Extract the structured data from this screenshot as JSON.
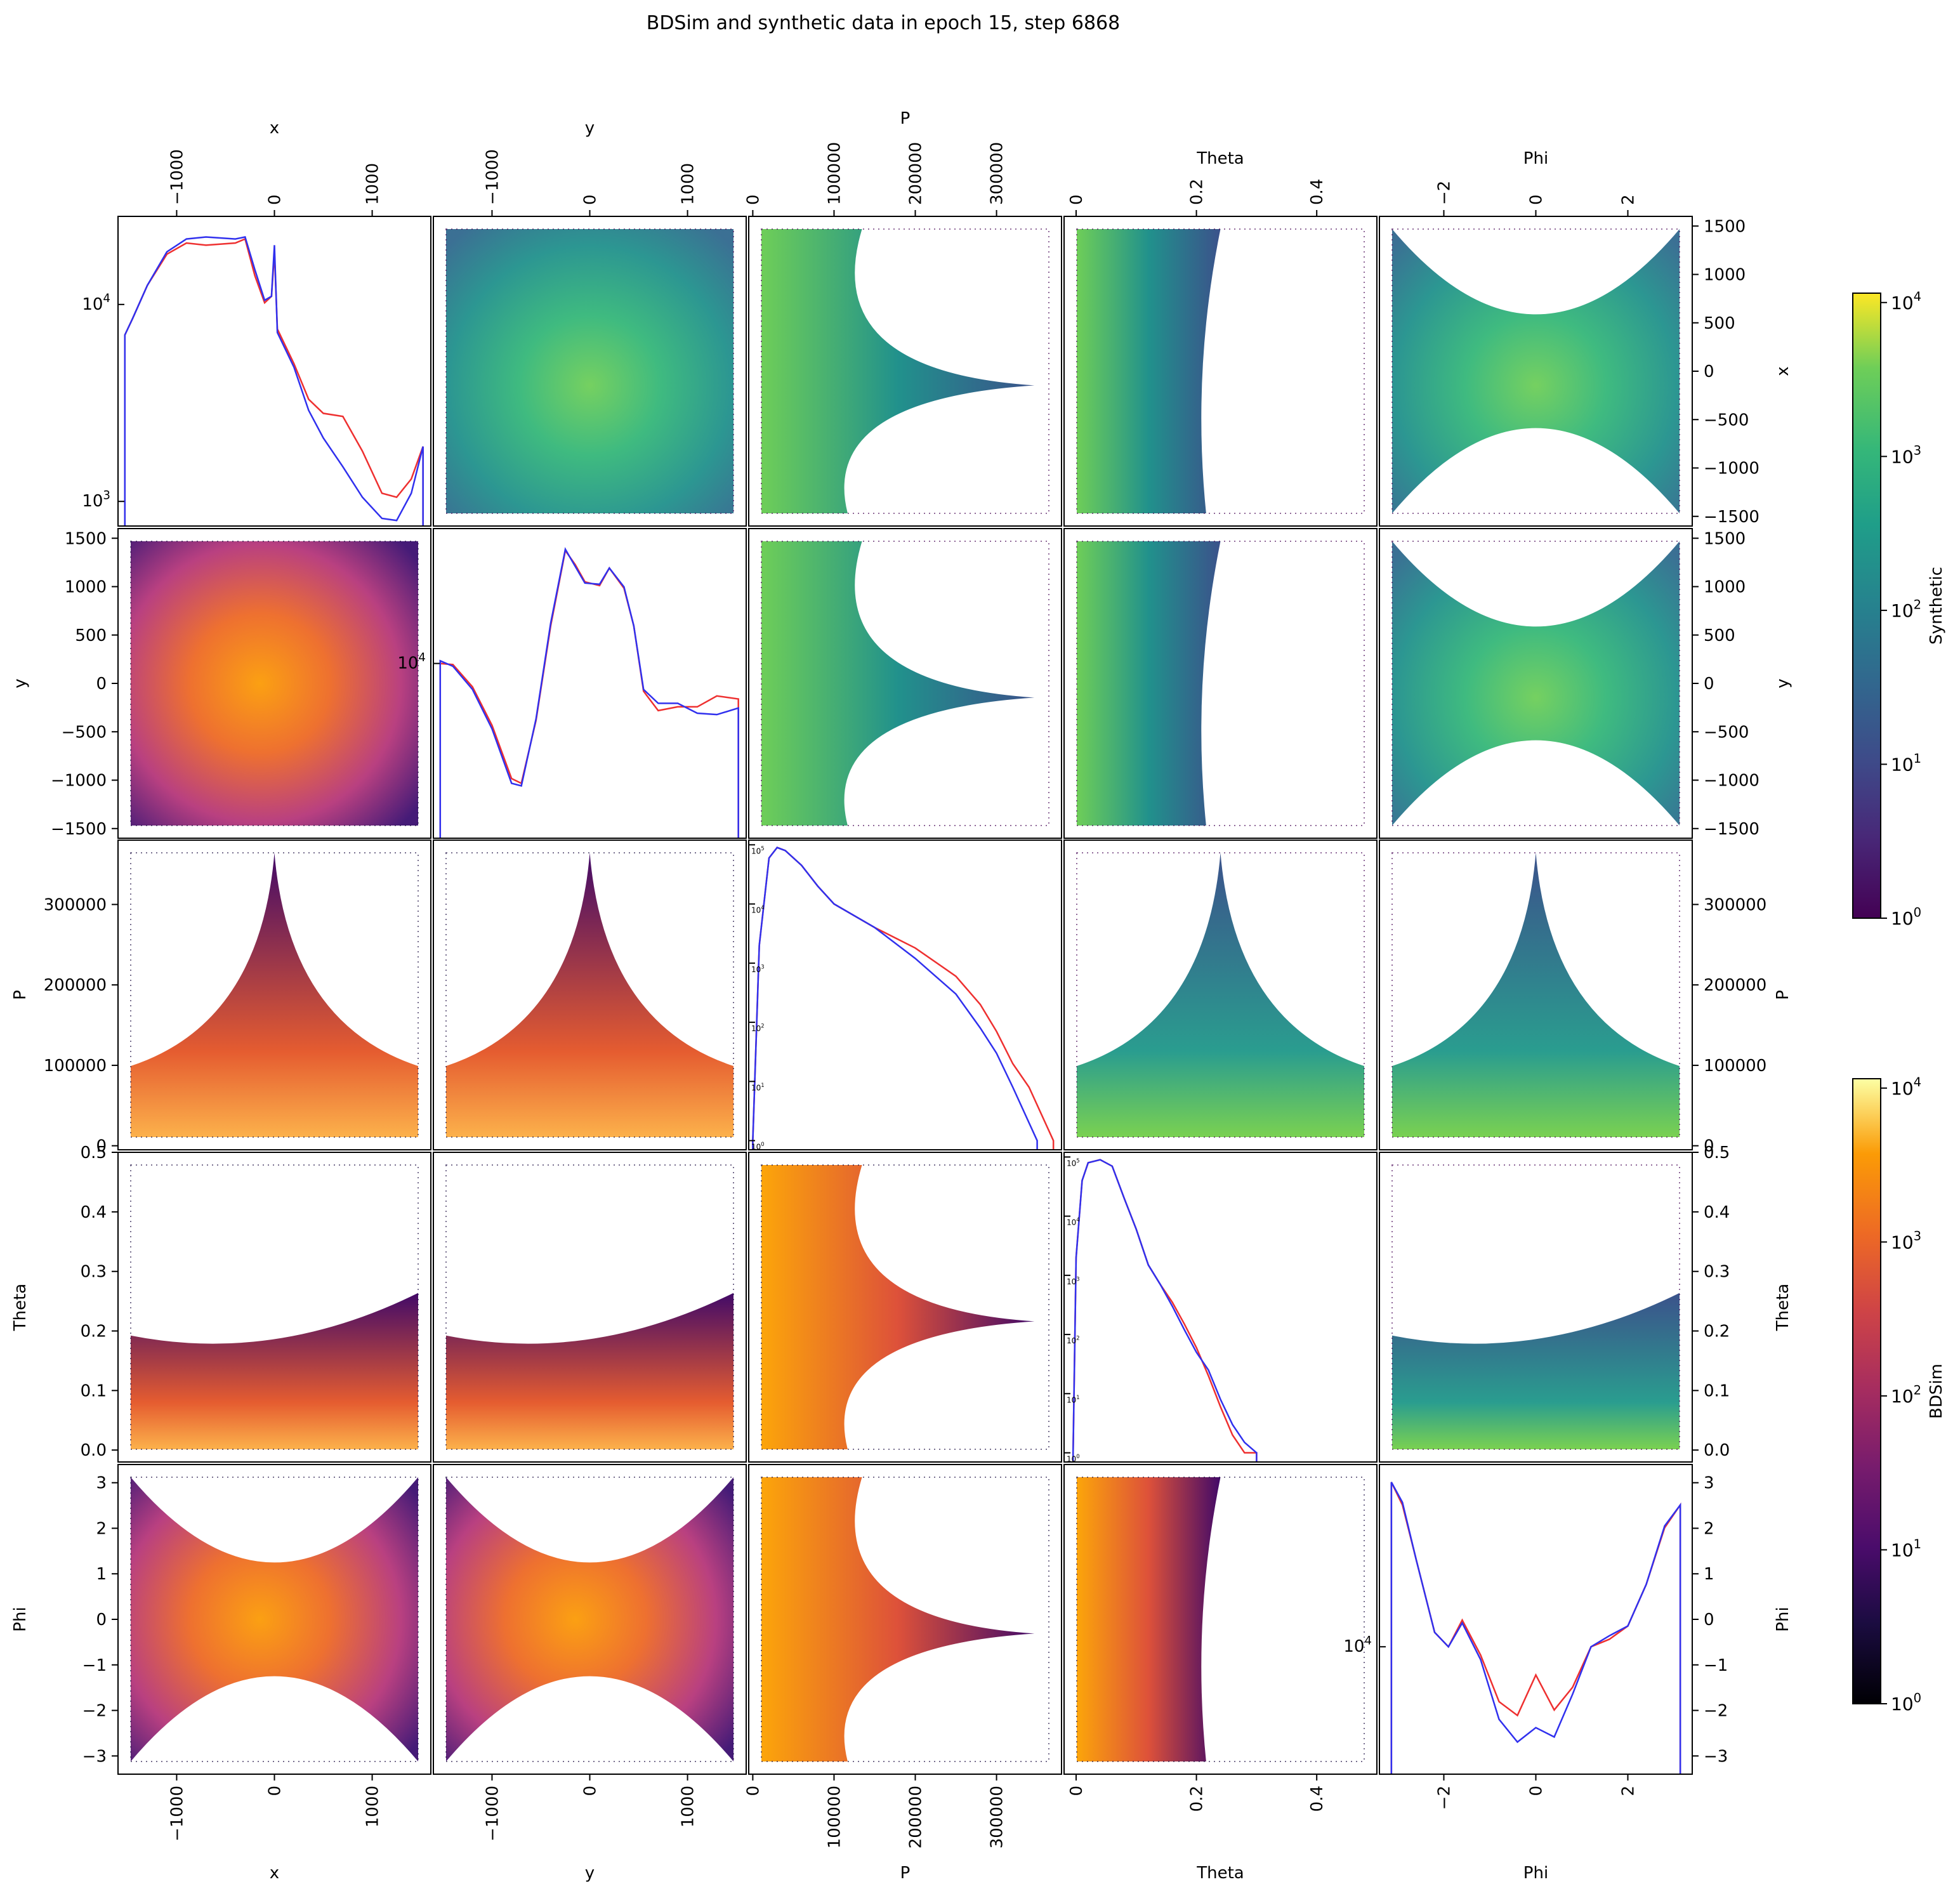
{
  "title": "BDSim and synthetic data in epoch 15, step 6868",
  "colors": {
    "bdsim_line": "#ee3030",
    "synthetic_line": "#3030ee",
    "frame": "#000000"
  },
  "colorbars": [
    {
      "label": "Synthetic",
      "colormap": "viridis",
      "scale": "log",
      "range": [
        1,
        10000
      ],
      "ticks": [
        "10^0",
        "10^1",
        "10^2",
        "10^3",
        "10^4"
      ]
    },
    {
      "label": "BDSim",
      "colormap": "inferno",
      "scale": "log",
      "range": [
        1,
        10000
      ],
      "ticks": [
        "10^0",
        "10^1",
        "10^2",
        "10^3",
        "10^4"
      ]
    }
  ],
  "chart_data": {
    "type": "pairplot",
    "layout": "upper triangle = Synthetic 2D histograms (viridis, log); lower triangle = BDSim 2D histograms (inferno, log); diagonal = 1D histograms, BDSim (red) vs Synthetic (blue), log y",
    "variables": [
      "x",
      "y",
      "P",
      "Theta",
      "Phi"
    ],
    "axes": {
      "x": {
        "label": "x",
        "range": [
          -1600,
          1600
        ],
        "ticks": [
          -1000,
          0,
          1000
        ]
      },
      "y": {
        "label": "y",
        "range": [
          -1600,
          1600
        ],
        "ticks": [
          -1000,
          0,
          1000
        ]
      },
      "P": {
        "label": "P",
        "range": [
          -5000,
          380000
        ],
        "ticks": [
          0,
          100000,
          200000,
          300000
        ]
      },
      "Theta": {
        "label": "Theta",
        "range": [
          -0.02,
          0.5
        ],
        "ticks": [
          0.0,
          0.2,
          0.4
        ]
      },
      "Phi": {
        "label": "Phi",
        "range": [
          -3.4,
          3.4
        ],
        "ticks": [
          -2,
          0,
          2
        ]
      }
    },
    "row_ticks": {
      "x": [
        -1500,
        -1000,
        -500,
        0,
        500,
        1000,
        1500
      ],
      "y": [
        -1500,
        -1000,
        -500,
        0,
        500,
        1000,
        1500
      ],
      "P": [
        0,
        100000,
        200000,
        300000
      ],
      "Theta": [
        0.0,
        0.1,
        0.2,
        0.3,
        0.4,
        0.5
      ],
      "Phi": [
        -3,
        -2,
        -1,
        0,
        1,
        2,
        3
      ]
    },
    "diagonal_hist": {
      "x": {
        "ylim_log": [
          750,
          28000
        ],
        "tick_labels": [
          "10^3",
          "10^4"
        ],
        "bdsim": [
          [
            -1530,
            7000
          ],
          [
            -1450,
            8500
          ],
          [
            -1300,
            12500
          ],
          [
            -1100,
            18000
          ],
          [
            -900,
            20500
          ],
          [
            -700,
            20000
          ],
          [
            -400,
            20500
          ],
          [
            -300,
            21500
          ],
          [
            -200,
            14000
          ],
          [
            -100,
            10200
          ],
          [
            -30,
            11000
          ],
          [
            0,
            18500
          ],
          [
            30,
            7500
          ],
          [
            200,
            5000
          ],
          [
            350,
            3300
          ],
          [
            500,
            2800
          ],
          [
            700,
            2700
          ],
          [
            900,
            1800
          ],
          [
            1100,
            1100
          ],
          [
            1250,
            1050
          ],
          [
            1400,
            1300
          ],
          [
            1520,
            1900
          ]
        ],
        "synthetic": [
          [
            -1530,
            7000
          ],
          [
            -1450,
            8500
          ],
          [
            -1300,
            12500
          ],
          [
            -1100,
            18500
          ],
          [
            -900,
            21500
          ],
          [
            -700,
            22000
          ],
          [
            -400,
            21500
          ],
          [
            -300,
            22000
          ],
          [
            -200,
            15000
          ],
          [
            -100,
            10500
          ],
          [
            -30,
            11000
          ],
          [
            0,
            20000
          ],
          [
            30,
            7200
          ],
          [
            200,
            4800
          ],
          [
            350,
            2900
          ],
          [
            500,
            2100
          ],
          [
            700,
            1500
          ],
          [
            900,
            1050
          ],
          [
            1100,
            820
          ],
          [
            1250,
            800
          ],
          [
            1400,
            1100
          ],
          [
            1520,
            1900
          ]
        ]
      },
      "y": {
        "ylim_log": [
          400,
          120000
        ],
        "tick_labels": [
          "10^4"
        ],
        "bdsim": [
          [
            -1530,
            10000
          ],
          [
            -1400,
            9800
          ],
          [
            -1200,
            6500
          ],
          [
            -1000,
            3200
          ],
          [
            -800,
            1200
          ],
          [
            -700,
            1100
          ],
          [
            -550,
            3500
          ],
          [
            -400,
            20000
          ],
          [
            -250,
            80000
          ],
          [
            -150,
            62000
          ],
          [
            -50,
            45000
          ],
          [
            100,
            42000
          ],
          [
            200,
            58000
          ],
          [
            350,
            40000
          ],
          [
            450,
            20000
          ],
          [
            550,
            6000
          ],
          [
            700,
            4200
          ],
          [
            900,
            4500
          ],
          [
            1100,
            4500
          ],
          [
            1300,
            5500
          ],
          [
            1520,
            5200
          ]
        ],
        "synthetic": [
          [
            -1530,
            10500
          ],
          [
            -1400,
            9500
          ],
          [
            -1200,
            6200
          ],
          [
            -1000,
            3000
          ],
          [
            -800,
            1100
          ],
          [
            -700,
            1050
          ],
          [
            -550,
            3600
          ],
          [
            -400,
            21000
          ],
          [
            -250,
            82000
          ],
          [
            -150,
            60000
          ],
          [
            -50,
            44000
          ],
          [
            100,
            43000
          ],
          [
            200,
            58000
          ],
          [
            350,
            41000
          ],
          [
            450,
            20000
          ],
          [
            550,
            6200
          ],
          [
            700,
            4800
          ],
          [
            900,
            4800
          ],
          [
            1100,
            4000
          ],
          [
            1300,
            3900
          ],
          [
            1520,
            4400
          ]
        ]
      },
      "P": {
        "ylim_log": [
          0.7,
          120000
        ],
        "tick_labels": [
          "10^0",
          "10^1",
          "10^2",
          "10^3",
          "10^4",
          "10^5"
        ],
        "bdsim": [
          [
            0,
            1
          ],
          [
            8000,
            2000
          ],
          [
            20000,
            60000
          ],
          [
            30000,
            90000
          ],
          [
            40000,
            80000
          ],
          [
            60000,
            45000
          ],
          [
            80000,
            20000
          ],
          [
            100000,
            10000
          ],
          [
            150000,
            4000
          ],
          [
            200000,
            1800
          ],
          [
            250000,
            600
          ],
          [
            280000,
            200
          ],
          [
            300000,
            70
          ],
          [
            320000,
            20
          ],
          [
            340000,
            8
          ],
          [
            360000,
            2
          ],
          [
            370000,
            1
          ]
        ],
        "synthetic": [
          [
            0,
            1
          ],
          [
            8000,
            2000
          ],
          [
            20000,
            60000
          ],
          [
            30000,
            90000
          ],
          [
            40000,
            80000
          ],
          [
            60000,
            45000
          ],
          [
            80000,
            20000
          ],
          [
            100000,
            10000
          ],
          [
            150000,
            4000
          ],
          [
            200000,
            1200
          ],
          [
            250000,
            300
          ],
          [
            280000,
            80
          ],
          [
            300000,
            30
          ],
          [
            320000,
            8
          ],
          [
            340000,
            2
          ],
          [
            350000,
            1
          ]
        ]
      },
      "Theta": {
        "ylim_log": [
          0.7,
          120000
        ],
        "tick_labels": [
          "10^0",
          "10^1",
          "10^2",
          "10^3",
          "10^4",
          "10^5"
        ],
        "bdsim": [
          [
            -0.005,
            1
          ],
          [
            0.0,
            2000
          ],
          [
            0.01,
            40000
          ],
          [
            0.02,
            80000
          ],
          [
            0.04,
            90000
          ],
          [
            0.06,
            70000
          ],
          [
            0.08,
            20000
          ],
          [
            0.1,
            6000
          ],
          [
            0.12,
            1500
          ],
          [
            0.14,
            700
          ],
          [
            0.16,
            350
          ],
          [
            0.18,
            150
          ],
          [
            0.2,
            60
          ],
          [
            0.22,
            20
          ],
          [
            0.24,
            6
          ],
          [
            0.26,
            2
          ],
          [
            0.28,
            1
          ],
          [
            0.3,
            1
          ]
        ],
        "synthetic": [
          [
            -0.005,
            1
          ],
          [
            0.0,
            2000
          ],
          [
            0.01,
            40000
          ],
          [
            0.02,
            80000
          ],
          [
            0.04,
            90000
          ],
          [
            0.06,
            70000
          ],
          [
            0.08,
            20000
          ],
          [
            0.1,
            6000
          ],
          [
            0.12,
            1500
          ],
          [
            0.14,
            700
          ],
          [
            0.16,
            300
          ],
          [
            0.18,
            120
          ],
          [
            0.2,
            50
          ],
          [
            0.22,
            25
          ],
          [
            0.24,
            8
          ],
          [
            0.26,
            3
          ],
          [
            0.28,
            1.5
          ],
          [
            0.3,
            1
          ]
        ]
      },
      "Phi": {
        "ylim_log": [
          2000,
          100000
        ],
        "tick_labels": [
          "10^4"
        ],
        "bdsim": [
          [
            -3.14,
            80000
          ],
          [
            -2.9,
            60000
          ],
          [
            -2.6,
            30000
          ],
          [
            -2.2,
            12000
          ],
          [
            -1.9,
            10000
          ],
          [
            -1.6,
            14000
          ],
          [
            -1.2,
            9000
          ],
          [
            -0.8,
            5000
          ],
          [
            -0.4,
            4200
          ],
          [
            0.0,
            7000
          ],
          [
            0.4,
            4500
          ],
          [
            0.8,
            6000
          ],
          [
            1.2,
            10000
          ],
          [
            1.6,
            11000
          ],
          [
            2.0,
            13000
          ],
          [
            2.4,
            22000
          ],
          [
            2.8,
            45000
          ],
          [
            3.14,
            60000
          ]
        ],
        "synthetic": [
          [
            -3.14,
            80000
          ],
          [
            -2.9,
            62000
          ],
          [
            -2.6,
            30000
          ],
          [
            -2.2,
            12000
          ],
          [
            -1.9,
            10000
          ],
          [
            -1.6,
            13500
          ],
          [
            -1.2,
            8500
          ],
          [
            -0.8,
            4000
          ],
          [
            -0.4,
            3000
          ],
          [
            0.0,
            3600
          ],
          [
            0.4,
            3200
          ],
          [
            0.8,
            5500
          ],
          [
            1.2,
            10000
          ],
          [
            1.6,
            11500
          ],
          [
            2.0,
            13000
          ],
          [
            2.4,
            22000
          ],
          [
            2.8,
            46000
          ],
          [
            3.14,
            60000
          ]
        ]
      }
    }
  }
}
